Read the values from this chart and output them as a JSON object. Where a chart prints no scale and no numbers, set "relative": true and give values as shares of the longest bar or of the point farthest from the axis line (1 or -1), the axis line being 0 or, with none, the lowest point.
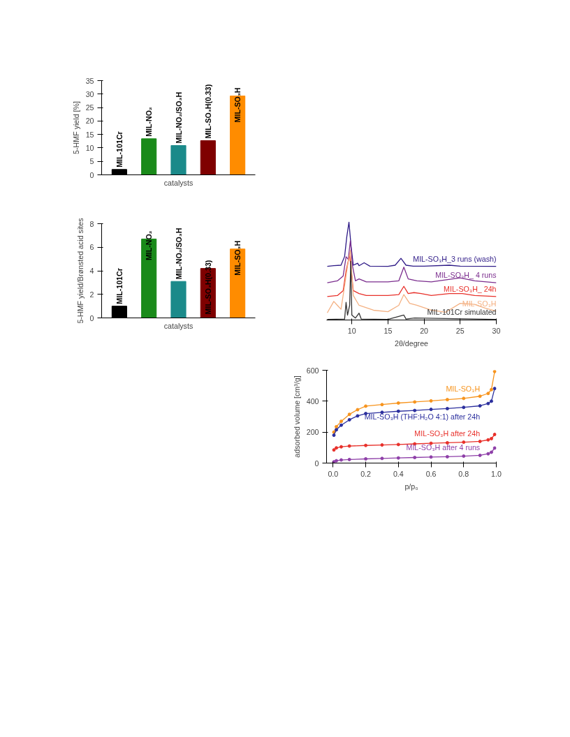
{
  "chart_data": [
    {
      "type": "bar",
      "xlabel": "catalysts",
      "ylabel": "5-HMF yield [%]",
      "categories": [
        "MIL-101Cr",
        "MIL-NO₂",
        "MIL-NO₂/SO₃H",
        "MIL-SO₃H(0.33)",
        "MIL-SO₃H"
      ],
      "values": [
        2.0,
        13.4,
        10.9,
        12.7,
        29.3
      ],
      "colors": [
        "#000000",
        "#1a8a1a",
        "#1b8a8a",
        "#7f0000",
        "#ff8c00"
      ],
      "ylim": [
        0,
        35
      ],
      "yticks": [
        0,
        5,
        10,
        15,
        20,
        25,
        30,
        35
      ],
      "tick_labels": "y"
    },
    {
      "type": "bar",
      "xlabel": "catalysts",
      "ylabel": "5-HMF yield/Brønsted acid sites",
      "categories": [
        "MIL-101Cr",
        "MIL-NO₂",
        "MIL-NO₂/SO₃H",
        "MIL-SO₃H(0.33)",
        "MIL-SO₃H"
      ],
      "values": [
        1.0,
        6.7,
        3.1,
        4.2,
        5.85
      ],
      "colors": [
        "#000000",
        "#1a8a1a",
        "#1b8a8a",
        "#7f0000",
        "#ff8c00"
      ],
      "ylim": [
        0,
        8
      ],
      "yticks": [
        0,
        2,
        4,
        6,
        8
      ],
      "tick_labels": "y"
    },
    {
      "type": "line",
      "relative": true,
      "xlabel": "2θ/degree",
      "xlim": [
        6.5,
        30
      ],
      "xticks": [
        10,
        15,
        20,
        25,
        30
      ],
      "tick_labels": "x",
      "series": [
        {
          "name": "MIL-SO₃H_3 runs (wash)",
          "color": "#2e1a87",
          "x": [
            6.6,
            7.5,
            8.5,
            9.0,
            9.3,
            9.6,
            9.9,
            10.2,
            10.8,
            11.0,
            11.7,
            12.5,
            15,
            16,
            16.8,
            17.5,
            18.5,
            20,
            23.5,
            25,
            30
          ],
          "values": [
            0.548,
            0.555,
            0.56,
            0.65,
            0.85,
            1.0,
            0.75,
            0.56,
            0.58,
            0.555,
            0.585,
            0.55,
            0.548,
            0.56,
            0.63,
            0.56,
            0.55,
            0.55,
            0.56,
            0.55,
            0.548
          ]
        },
        {
          "name": "MIL-SO₃H_ 4 runs",
          "color": "#7b2d8e",
          "x": [
            6.6,
            8,
            8.8,
            9.2,
            9.5,
            9.8,
            10.1,
            10.5,
            11.0,
            12,
            15,
            16.5,
            17.2,
            17.8,
            19,
            21,
            25,
            27,
            30
          ],
          "values": [
            0.38,
            0.4,
            0.45,
            0.646,
            0.62,
            0.81,
            0.55,
            0.4,
            0.42,
            0.39,
            0.39,
            0.4,
            0.54,
            0.42,
            0.4,
            0.39,
            0.43,
            0.4,
            0.38
          ]
        },
        {
          "name": "MIL-SO₃H_ 24h",
          "color": "#e8302a",
          "x": [
            6.6,
            8,
            8.8,
            9.2,
            9.7,
            10.2,
            11,
            12,
            15,
            16.5,
            17.2,
            17.8,
            18.6,
            19.6,
            21,
            23.5,
            25.3,
            27,
            30
          ],
          "values": [
            0.24,
            0.25,
            0.3,
            0.5,
            0.667,
            0.3,
            0.27,
            0.25,
            0.25,
            0.26,
            0.344,
            0.27,
            0.28,
            0.27,
            0.25,
            0.27,
            0.27,
            0.25,
            0.24
          ]
        },
        {
          "name": "MIL-SO₃H",
          "color": "#f4b183",
          "x": [
            6.6,
            7.5,
            8,
            8.5,
            9.0,
            9.5,
            9.8,
            10.2,
            11,
            13,
            15,
            16.5,
            17.2,
            18,
            19,
            21,
            23,
            25,
            27,
            28.5,
            30
          ],
          "values": [
            0.073,
            0.19,
            0.15,
            0.11,
            0.35,
            0.6,
            0.71,
            0.25,
            0.15,
            0.1,
            0.085,
            0.15,
            0.26,
            0.17,
            0.15,
            0.1,
            0.08,
            0.17,
            0.16,
            0.12,
            0.09
          ]
        },
        {
          "name": "MIL-101Cr simulated",
          "color": "#333333",
          "x": [
            6.6,
            9.0,
            9.2,
            9.4,
            9.7,
            9.85,
            10.0,
            10.5,
            11.0,
            11.3,
            15,
            17.2,
            17.5,
            18.7,
            30
          ],
          "values": [
            0.006,
            0.01,
            0.18,
            0.05,
            0.15,
            0.6,
            0.05,
            0.02,
            0.07,
            0.01,
            0.006,
            0.05,
            0.01,
            0.02,
            0.006
          ]
        }
      ]
    },
    {
      "type": "line",
      "marker": "circle",
      "xlabel": "p/p₀",
      "ylabel": "adsorbed volume [cm³/g]",
      "xlim": [
        -0.04,
        1.0
      ],
      "xticks": [
        {
          "value": 0,
          "label": "0.0"
        },
        0.2,
        0.4,
        0.6,
        0.8,
        {
          "value": 1,
          "label": "1.0"
        }
      ],
      "ylim": [
        0,
        600
      ],
      "yticks": [
        0,
        200,
        400,
        600
      ],
      "series": [
        {
          "name": "MIL-SO₃H",
          "color": "#f7941d",
          "x": [
            0.005,
            0.02,
            0.05,
            0.1,
            0.15,
            0.2,
            0.3,
            0.4,
            0.5,
            0.6,
            0.7,
            0.8,
            0.9,
            0.95,
            0.97,
            0.99
          ],
          "values": [
            200,
            235,
            270,
            315,
            345,
            368,
            378,
            388,
            395,
            402,
            410,
            418,
            432,
            450,
            475,
            592
          ]
        },
        {
          "name": "MIL-SO₃H (THF:H₂O 4:1) after 24h",
          "color": "#2b2f9e",
          "x": [
            0.005,
            0.02,
            0.05,
            0.1,
            0.15,
            0.2,
            0.3,
            0.4,
            0.5,
            0.6,
            0.7,
            0.8,
            0.9,
            0.95,
            0.97,
            0.99
          ],
          "values": [
            180,
            215,
            245,
            280,
            305,
            320,
            328,
            335,
            340,
            347,
            352,
            360,
            370,
            385,
            400,
            482
          ]
        },
        {
          "name": "MIL-SO₃H after 24h",
          "color": "#e8302a",
          "x": [
            0.005,
            0.02,
            0.05,
            0.1,
            0.2,
            0.3,
            0.4,
            0.5,
            0.6,
            0.7,
            0.8,
            0.9,
            0.95,
            0.97,
            0.99
          ],
          "values": [
            85,
            98,
            105,
            110,
            114,
            117,
            120,
            124,
            128,
            131,
            135,
            140,
            150,
            158,
            185
          ]
        },
        {
          "name": "MIL-SO₃H after 4 runs",
          "color": "#8e3fa8",
          "x": [
            0.005,
            0.02,
            0.05,
            0.1,
            0.2,
            0.3,
            0.4,
            0.5,
            0.6,
            0.7,
            0.8,
            0.9,
            0.95,
            0.97,
            0.99
          ],
          "values": [
            8,
            15,
            20,
            23,
            27,
            30,
            33,
            36,
            39,
            41,
            45,
            50,
            60,
            70,
            97
          ]
        }
      ]
    }
  ]
}
